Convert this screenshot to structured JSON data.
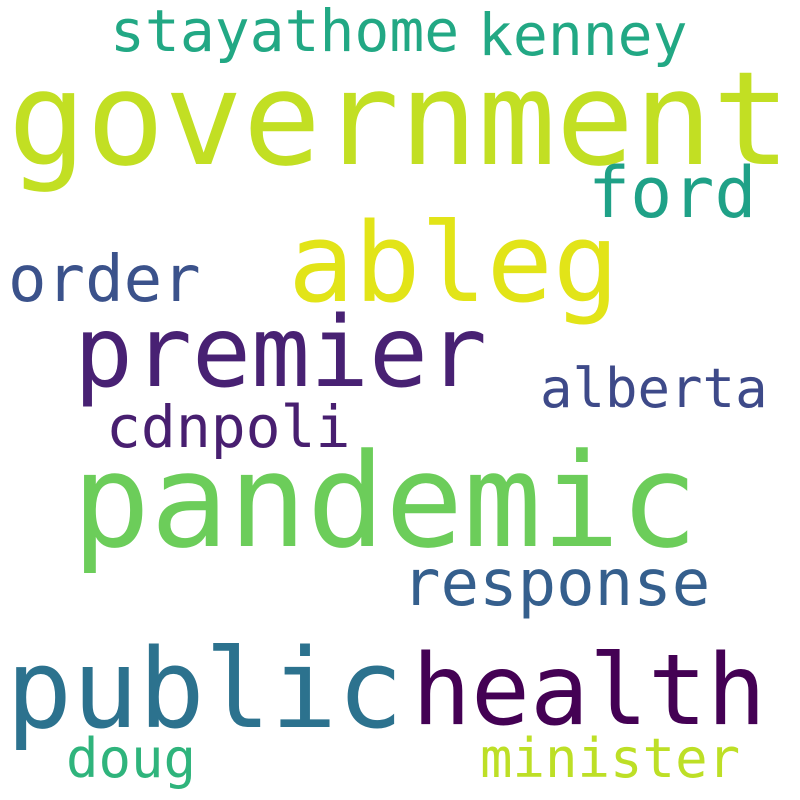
{
  "words": [
    {
      "id": "stayathome",
      "text": "stayathome",
      "color": "#22a884"
    },
    {
      "id": "kenney",
      "text": "kenney",
      "color": "#22a884"
    },
    {
      "id": "government",
      "text": "government",
      "color": "#c2df23"
    },
    {
      "id": "ford",
      "text": "ford",
      "color": "#1fa187"
    },
    {
      "id": "ableg",
      "text": "ableg",
      "color": "#e2e418"
    },
    {
      "id": "order",
      "text": "order",
      "color": "#3b528b"
    },
    {
      "id": "premier",
      "text": "premier",
      "color": "#482173"
    },
    {
      "id": "alberta",
      "text": "alberta",
      "color": "#3e4a89"
    },
    {
      "id": "cdnpoli",
      "text": "cdnpoli",
      "color": "#481f70"
    },
    {
      "id": "pandemic",
      "text": "pandemic",
      "color": "#6ccd5a"
    },
    {
      "id": "response",
      "text": "response",
      "color": "#355f8d"
    },
    {
      "id": "public",
      "text": "public",
      "color": "#2c728e"
    },
    {
      "id": "health",
      "text": "health",
      "color": "#440154"
    },
    {
      "id": "doug",
      "text": "doug",
      "color": "#2fb47c"
    },
    {
      "id": "minister",
      "text": "minister",
      "color": "#bddf26"
    }
  ]
}
